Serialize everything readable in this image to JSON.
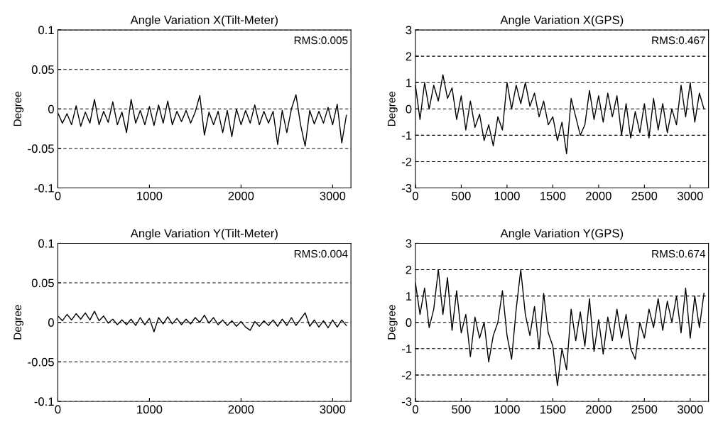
{
  "chart_data": [
    {
      "type": "line",
      "title": "Angle Variation X(Tilt-Meter)",
      "ylabel": "Degree",
      "annotations": [
        "RMS:0.005"
      ],
      "grid": "y",
      "xlim": [
        0,
        3200
      ],
      "ylim": [
        -0.1,
        0.1
      ],
      "xticks": [
        0,
        1000,
        2000,
        3000
      ],
      "yticks": [
        -0.1,
        -0.05,
        0,
        0.05,
        0.1
      ],
      "x": [
        0,
        50,
        100,
        150,
        200,
        250,
        300,
        350,
        400,
        450,
        500,
        550,
        600,
        650,
        700,
        750,
        800,
        850,
        900,
        950,
        1000,
        1050,
        1100,
        1150,
        1200,
        1250,
        1300,
        1350,
        1400,
        1450,
        1500,
        1550,
        1600,
        1650,
        1700,
        1750,
        1800,
        1850,
        1900,
        1950,
        2000,
        2050,
        2100,
        2150,
        2200,
        2250,
        2300,
        2350,
        2400,
        2450,
        2500,
        2550,
        2600,
        2650,
        2700,
        2750,
        2800,
        2850,
        2900,
        2950,
        3000,
        3050,
        3100,
        3150
      ],
      "series": [
        {
          "color": "#000000",
          "values": [
            -0.005,
            -0.018,
            -0.006,
            -0.02,
            0.004,
            -0.022,
            -0.004,
            -0.018,
            0.012,
            -0.02,
            -0.003,
            -0.017,
            0.009,
            -0.02,
            -0.004,
            -0.03,
            0.012,
            -0.018,
            -0.002,
            -0.02,
            0.003,
            -0.021,
            0.005,
            -0.018,
            0.01,
            -0.02,
            -0.003,
            -0.016,
            -0.002,
            -0.018,
            -0.004,
            0.017,
            -0.033,
            -0.004,
            -0.02,
            -0.003,
            -0.03,
            -0.002,
            -0.035,
            0.0,
            -0.02,
            -0.002,
            -0.018,
            0.005,
            -0.02,
            -0.003,
            -0.018,
            -0.003,
            -0.045,
            -0.002,
            -0.03,
            0.0,
            0.018,
            -0.02,
            -0.047,
            -0.002,
            -0.019,
            -0.003,
            -0.018,
            0.002,
            -0.02,
            0.006,
            -0.043,
            -0.008
          ]
        }
      ]
    },
    {
      "type": "line",
      "title": "Angle Variation X(GPS)",
      "ylabel": "Degree",
      "annotations": [
        "RMS:0.467"
      ],
      "grid": "y",
      "xlim": [
        0,
        3200
      ],
      "ylim": [
        -3,
        3
      ],
      "xticks": [
        0,
        500,
        1000,
        1500,
        2000,
        2500,
        3000
      ],
      "yticks": [
        -3,
        -2,
        -1,
        0,
        1,
        2,
        3
      ],
      "x": [
        0,
        50,
        100,
        150,
        200,
        250,
        300,
        350,
        400,
        450,
        500,
        550,
        600,
        650,
        700,
        750,
        800,
        850,
        900,
        950,
        1000,
        1050,
        1100,
        1150,
        1200,
        1250,
        1300,
        1350,
        1400,
        1450,
        1500,
        1550,
        1600,
        1650,
        1700,
        1750,
        1800,
        1850,
        1900,
        1950,
        2000,
        2050,
        2100,
        2150,
        2200,
        2250,
        2300,
        2350,
        2400,
        2450,
        2500,
        2550,
        2600,
        2650,
        2700,
        2750,
        2800,
        2850,
        2900,
        2950,
        3000,
        3050,
        3100,
        3150
      ],
      "series": [
        {
          "color": "#000000",
          "values": [
            0.9,
            -0.4,
            1.0,
            0.0,
            0.9,
            0.3,
            1.3,
            0.4,
            0.8,
            -0.4,
            0.5,
            -0.8,
            0.3,
            -0.7,
            -0.2,
            -1.2,
            -0.6,
            -1.4,
            -0.3,
            -0.8,
            1.0,
            0.0,
            0.9,
            0.2,
            1.0,
            0.1,
            0.6,
            -0.3,
            0.3,
            -0.6,
            -0.3,
            -1.2,
            -0.5,
            -1.7,
            0.4,
            -0.3,
            -1.0,
            -0.6,
            0.7,
            -0.4,
            0.5,
            -0.5,
            0.6,
            -0.3,
            0.5,
            -1.0,
            0.2,
            -1.1,
            -0.1,
            -0.9,
            0.2,
            -1.1,
            0.4,
            -0.8,
            0.2,
            -0.9,
            0.0,
            -0.6,
            0.9,
            -0.3,
            1.0,
            -0.5,
            0.6,
            0.0
          ]
        }
      ]
    },
    {
      "type": "line",
      "title": "Angle Variation Y(Tilt-Meter)",
      "ylabel": "Degree",
      "annotations": [
        "RMS:0.004"
      ],
      "grid": "y",
      "xlim": [
        0,
        3200
      ],
      "ylim": [
        -0.1,
        0.1
      ],
      "xticks": [
        0,
        1000,
        2000,
        3000
      ],
      "yticks": [
        -0.1,
        -0.05,
        0,
        0.05,
        0.1
      ],
      "x": [
        0,
        50,
        100,
        150,
        200,
        250,
        300,
        350,
        400,
        450,
        500,
        550,
        600,
        650,
        700,
        750,
        800,
        850,
        900,
        950,
        1000,
        1050,
        1100,
        1150,
        1200,
        1250,
        1300,
        1350,
        1400,
        1450,
        1500,
        1550,
        1600,
        1650,
        1700,
        1750,
        1800,
        1850,
        1900,
        1950,
        2000,
        2050,
        2100,
        2150,
        2200,
        2250,
        2300,
        2350,
        2400,
        2450,
        2500,
        2550,
        2600,
        2650,
        2700,
        2750,
        2800,
        2850,
        2900,
        2950,
        3000,
        3050,
        3100,
        3150
      ],
      "series": [
        {
          "color": "#000000",
          "values": [
            0.008,
            0.002,
            0.01,
            0.003,
            0.011,
            0.004,
            0.012,
            0.003,
            0.014,
            0.002,
            0.008,
            -0.001,
            0.004,
            -0.003,
            0.003,
            -0.003,
            0.004,
            -0.004,
            0.006,
            -0.003,
            0.005,
            -0.012,
            0.006,
            -0.002,
            0.007,
            -0.002,
            0.005,
            -0.003,
            0.004,
            -0.002,
            0.006,
            0.0,
            0.009,
            -0.001,
            0.006,
            -0.003,
            0.003,
            -0.004,
            0.002,
            -0.005,
            0.001,
            -0.006,
            -0.01,
            0.001,
            -0.005,
            0.002,
            -0.004,
            0.003,
            -0.005,
            0.004,
            -0.004,
            0.006,
            -0.004,
            0.004,
            0.012,
            -0.005,
            0.003,
            -0.006,
            0.002,
            -0.007,
            0.003,
            -0.006,
            0.003,
            -0.004
          ]
        }
      ]
    },
    {
      "type": "line",
      "title": "Angle Variation Y(GPS)",
      "ylabel": "Degree",
      "annotations": [
        "RMS:0.674"
      ],
      "grid": "y",
      "xlim": [
        0,
        3200
      ],
      "ylim": [
        -3,
        3
      ],
      "xticks": [
        0,
        500,
        1000,
        1500,
        2000,
        2500,
        3000
      ],
      "yticks": [
        -3,
        -2,
        -1,
        0,
        1,
        2,
        3
      ],
      "x": [
        0,
        50,
        100,
        150,
        200,
        250,
        300,
        350,
        400,
        450,
        500,
        550,
        600,
        650,
        700,
        750,
        800,
        850,
        900,
        950,
        1000,
        1050,
        1100,
        1150,
        1200,
        1250,
        1300,
        1350,
        1400,
        1450,
        1500,
        1550,
        1600,
        1650,
        1700,
        1750,
        1800,
        1850,
        1900,
        1950,
        2000,
        2050,
        2100,
        2150,
        2200,
        2250,
        2300,
        2350,
        2400,
        2450,
        2500,
        2550,
        2600,
        2650,
        2700,
        2750,
        2800,
        2850,
        2900,
        2950,
        3000,
        3050,
        3100,
        3150
      ],
      "series": [
        {
          "color": "#000000",
          "values": [
            1.5,
            0.3,
            1.3,
            -0.2,
            0.5,
            2.0,
            0.3,
            1.7,
            -0.3,
            1.2,
            -0.4,
            0.3,
            -1.3,
            0.2,
            -0.6,
            0.0,
            -1.5,
            -0.5,
            0.0,
            1.2,
            -0.5,
            -1.4,
            0.5,
            2.0,
            0.3,
            -0.5,
            0.6,
            -1.0,
            1.1,
            -0.4,
            -0.9,
            -2.4,
            -1.0,
            -1.8,
            0.5,
            -0.7,
            0.4,
            -0.9,
            0.9,
            -1.1,
            0.1,
            -1.2,
            0.2,
            -0.7,
            0.5,
            -0.6,
            0.3,
            -1.0,
            -1.4,
            0.0,
            -0.6,
            0.5,
            -0.2,
            0.9,
            -0.3,
            0.8,
            0.0,
            1.0,
            -0.4,
            1.3,
            -0.6,
            1.0,
            -0.2,
            1.1
          ]
        }
      ]
    }
  ]
}
